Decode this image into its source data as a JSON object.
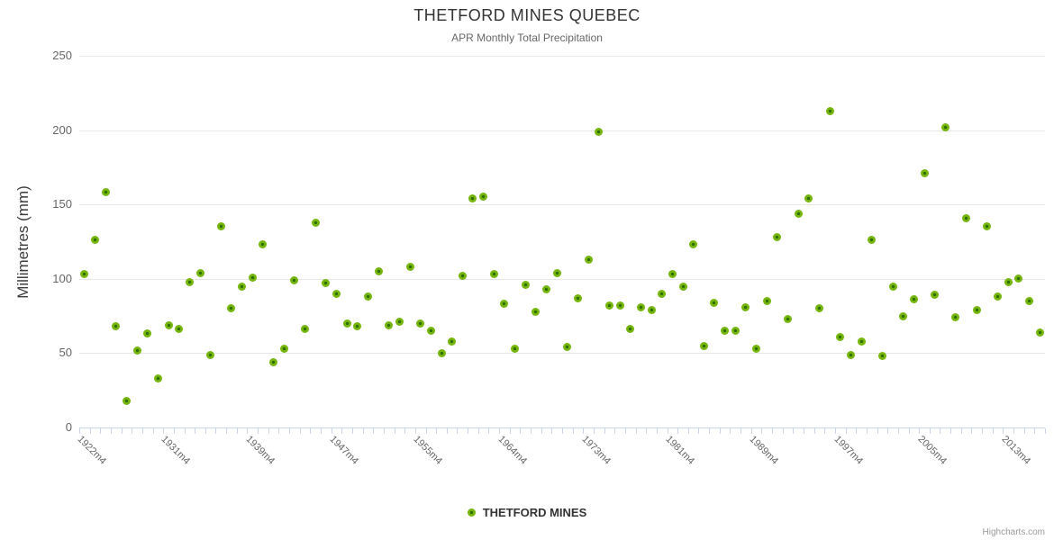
{
  "header": {
    "title": "THETFORD MINES QUEBEC",
    "subtitle": "APR Monthly Total Precipitation"
  },
  "y_axis": {
    "title": "Millimetres (mm)",
    "tick_labels": [
      "0",
      "50",
      "100",
      "150",
      "200",
      "250"
    ],
    "max": 250
  },
  "x_axis": {
    "visible_tick_labels": [
      "1922m4",
      "1931m4",
      "1939m4",
      "1947m4",
      "1955m4",
      "1964m4",
      "1973m4",
      "1981m4",
      "1989m4",
      "1997m4",
      "2005m4",
      "2013m4"
    ]
  },
  "legend": {
    "series_label": "THETFORD MINES"
  },
  "credit": "Highcharts.com",
  "colors": {
    "point_fill": "#74b50e",
    "point_center": "#2f6e02",
    "grid": "#e6e6e6",
    "axis_line": "#ccd6eb",
    "title_text": "#333333",
    "subtitle_text": "#666666",
    "tick_text": "#666666",
    "legend_text": "#333333",
    "credit_text": "#999999"
  },
  "chart_data": {
    "type": "scatter",
    "title": "THETFORD MINES QUEBEC",
    "subtitle": "APR Monthly Total Precipitation",
    "xlabel": "",
    "ylabel": "Millimetres (mm)",
    "ylim": [
      0,
      250
    ],
    "grid": "horizontal",
    "legend_position": "bottom",
    "series_name": "THETFORD MINES",
    "x": [
      "1922m4",
      "1923m4",
      "1924m4",
      "1925m4",
      "1926m4",
      "1927m4",
      "1928m4",
      "1929m4",
      "1930m4",
      "1931m4",
      "1932m4",
      "1933m4",
      "1934m4",
      "1935m4",
      "1936m4",
      "1937m4",
      "1938m4",
      "1939m4",
      "1940m4",
      "1941m4",
      "1942m4",
      "1943m4",
      "1944m4",
      "1945m4",
      "1946m4",
      "1947m4",
      "1948m4",
      "1949m4",
      "1950m4",
      "1951m4",
      "1952m4",
      "1953m4",
      "1954m4",
      "1955m4",
      "1956m4",
      "1957m4",
      "1958m4",
      "1959m4",
      "1960m4",
      "1961m4",
      "1962m4",
      "1963m4",
      "1964m4",
      "1965m4",
      "1966m4",
      "1967m4",
      "1968m4",
      "1969m4",
      "1970m4",
      "1971m4",
      "1972m4",
      "1973m4",
      "1974m4",
      "1975m4",
      "1976m4",
      "1977m4",
      "1978m4",
      "1979m4",
      "1980m4",
      "1981m4",
      "1982m4",
      "1983m4",
      "1984m4",
      "1985m4",
      "1986m4",
      "1987m4",
      "1988m4",
      "1989m4",
      "1990m4",
      "1991m4",
      "1992m4",
      "1993m4",
      "1994m4",
      "1995m4",
      "1996m4",
      "1997m4",
      "1998m4",
      "1999m4",
      "2000m4",
      "2001m4",
      "2002m4",
      "2003m4",
      "2004m4",
      "2005m4",
      "2006m4",
      "2007m4",
      "2008m4",
      "2009m4",
      "2010m4",
      "2011m4",
      "2012m4",
      "2013m4"
    ],
    "values": [
      103,
      126,
      158,
      68,
      18,
      52,
      63,
      33,
      69,
      66,
      98,
      104,
      49,
      135,
      80,
      95,
      101,
      123,
      44,
      53,
      99,
      66,
      138,
      97,
      90,
      70,
      68,
      88,
      105,
      69,
      71,
      108,
      70,
      65,
      50,
      58,
      102,
      154,
      155,
      103,
      83,
      53,
      96,
      78,
      93,
      104,
      54,
      87,
      113,
      199,
      82,
      82,
      66,
      81,
      79,
      90,
      103,
      95,
      123,
      55,
      84,
      65,
      65,
      81,
      53,
      85,
      128,
      73,
      144,
      154,
      80,
      213,
      61,
      49,
      58,
      126,
      48,
      95,
      75,
      86,
      171,
      89,
      202,
      74,
      141,
      79,
      135,
      88,
      98,
      100,
      85,
      64
    ]
  }
}
